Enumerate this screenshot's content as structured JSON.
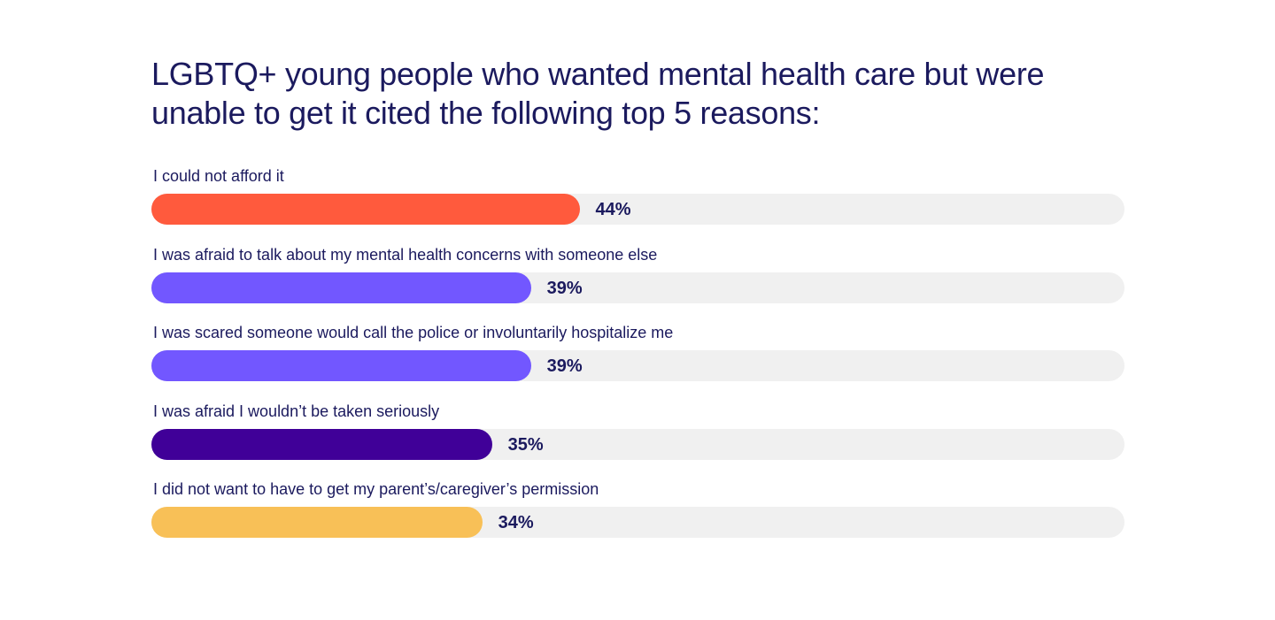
{
  "chart_data": {
    "type": "bar",
    "orientation": "horizontal",
    "title": "LGBTQ+ young people who wanted mental health care but were unable to get it cited the following top 5 reasons:",
    "unit": "%",
    "xlim": [
      0,
      100
    ],
    "grid": false,
    "categories": [
      "I could not afford it",
      "I was afraid to talk about my mental health concerns with someone else",
      "I was scared someone would call the police or involuntarily hospitalize me",
      "I was afraid I wouldn’t be taken seriously",
      "I did not want to have to get my parent’s/caregiver’s permission"
    ],
    "values": [
      44,
      39,
      39,
      35,
      34
    ],
    "value_labels": [
      "44%",
      "39%",
      "39%",
      "35%",
      "34%"
    ],
    "colors": [
      "#ff5a3d",
      "#7257ff",
      "#7257ff",
      "#400098",
      "#f8c057"
    ],
    "track_color": "#f0f0f0"
  }
}
